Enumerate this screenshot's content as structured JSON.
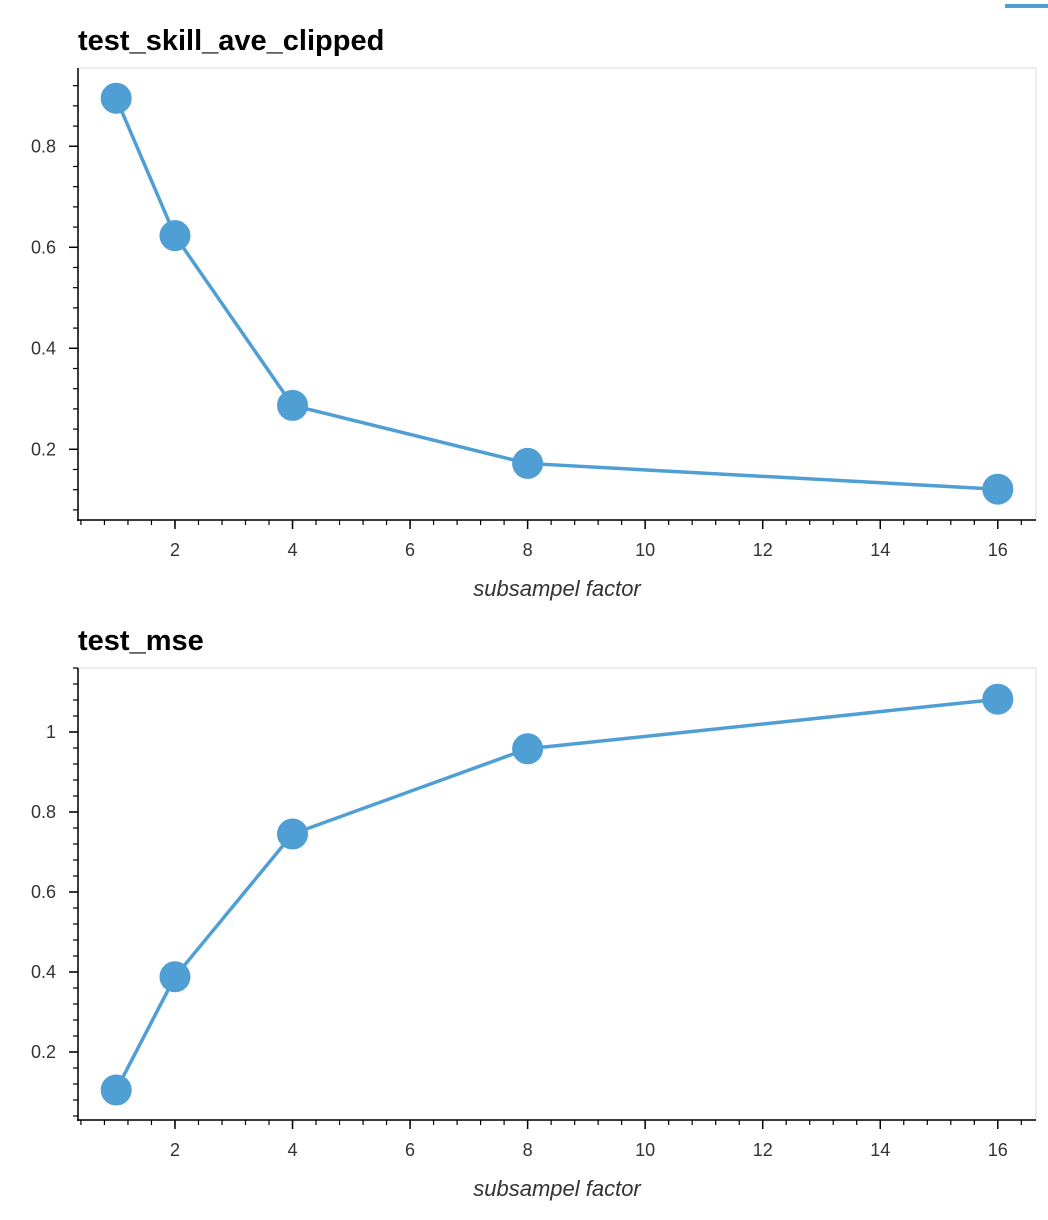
{
  "colors": {
    "series": "#4f9fd4",
    "axis": "#000000",
    "frame": "#e5e5e5",
    "tick_label": "#333333"
  },
  "chart_data": [
    {
      "type": "line",
      "markers": true,
      "title": "test_skill_ave_clipped",
      "xlabel": "subsampel factor",
      "ylabel": "",
      "x": [
        1,
        2,
        4,
        8,
        16
      ],
      "series": [
        {
          "values": [
            0.895,
            0.623,
            0.287,
            0.172,
            0.121
          ]
        }
      ],
      "xlim": [
        0.35,
        16.65
      ],
      "ylim": [
        0.06,
        0.955
      ],
      "xticks": [
        2,
        4,
        6,
        8,
        10,
        12,
        14,
        16
      ],
      "xtick_labels": [
        "2",
        "4",
        "6",
        "8",
        "10",
        "12",
        "14",
        "16"
      ],
      "yticks": [
        0.2,
        0.4,
        0.6,
        0.8
      ],
      "ytick_labels": [
        "0.2",
        "0.4",
        "0.6",
        "0.8"
      ],
      "grid": false,
      "legend": "none"
    },
    {
      "type": "line",
      "markers": true,
      "title": "test_mse",
      "xlabel": "subsampel factor",
      "ylabel": "",
      "x": [
        1,
        2,
        4,
        8,
        16
      ],
      "series": [
        {
          "values": [
            0.105,
            0.388,
            0.745,
            0.958,
            1.082
          ]
        }
      ],
      "xlim": [
        0.35,
        16.65
      ],
      "ylim": [
        0.03,
        1.16
      ],
      "xticks": [
        2,
        4,
        6,
        8,
        10,
        12,
        14,
        16
      ],
      "xtick_labels": [
        "2",
        "4",
        "6",
        "8",
        "10",
        "12",
        "14",
        "16"
      ],
      "yticks": [
        0.2,
        0.4,
        0.6,
        0.8,
        1
      ],
      "ytick_labels": [
        "0.2",
        "0.4",
        "0.6",
        "0.8",
        "1"
      ],
      "grid": false,
      "legend": "none"
    }
  ]
}
